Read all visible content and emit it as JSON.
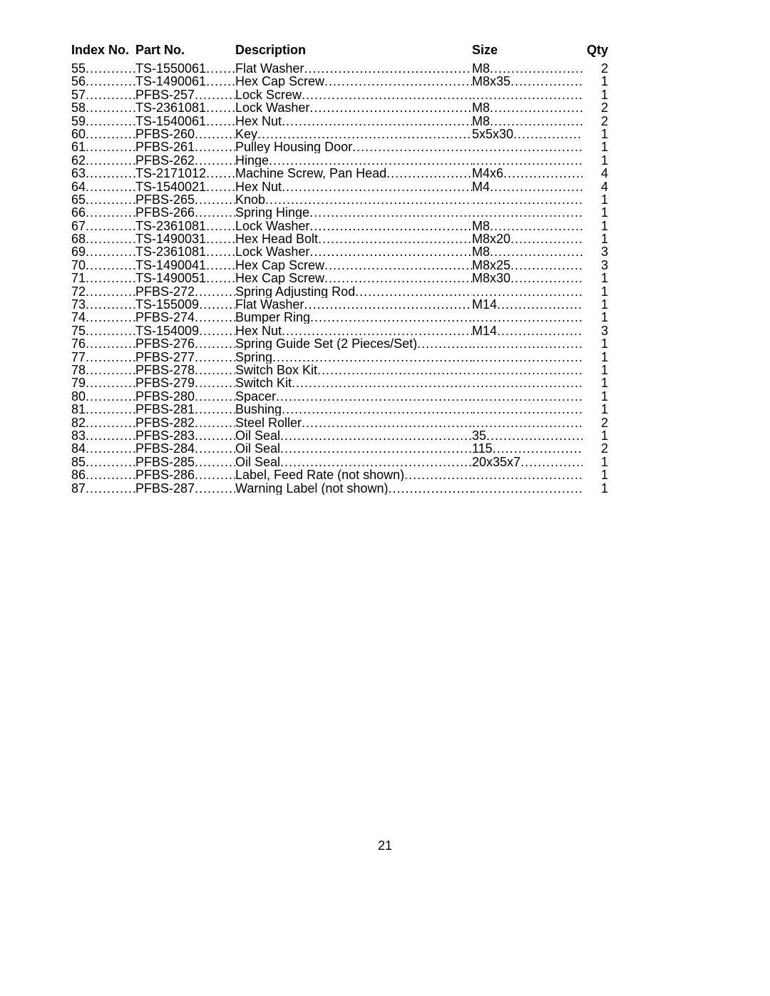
{
  "headers": {
    "index": "Index No.",
    "part": "Part No.",
    "description": "Description",
    "size": "Size",
    "qty": "Qty"
  },
  "page_number": "21",
  "dot_char": ".",
  "rows": [
    {
      "index": "55",
      "part": "TS-1550061",
      "description": "Flat Washer",
      "size": "M8",
      "qty": "2"
    },
    {
      "index": "56",
      "part": "TS-1490061",
      "description": "Hex Cap Screw",
      "size": "M8x35",
      "qty": "1"
    },
    {
      "index": "57",
      "part": "PFBS-257",
      "description": "Lock Screw",
      "size": "",
      "qty": "1"
    },
    {
      "index": "58",
      "part": "TS-2361081",
      "description": "Lock Washer",
      "size": "M8",
      "qty": "2"
    },
    {
      "index": "59",
      "part": "TS-1540061",
      "description": "Hex Nut",
      "size": "M8",
      "qty": "2"
    },
    {
      "index": "60",
      "part": "PFBS-260",
      "description": "Key",
      "size": "5x5x30",
      "qty": "1"
    },
    {
      "index": "61",
      "part": "PFBS-261",
      "description": "Pulley Housing Door",
      "size": "",
      "qty": "1"
    },
    {
      "index": "62",
      "part": "PFBS-262",
      "description": "Hinge",
      "size": "",
      "qty": "1"
    },
    {
      "index": "63",
      "part": "TS-2171012",
      "description": "Machine Screw, Pan Head",
      "size": "M4x6",
      "qty": "4"
    },
    {
      "index": "64",
      "part": "TS-1540021",
      "description": "Hex Nut",
      "size": "M4",
      "qty": "4"
    },
    {
      "index": "65",
      "part": "PFBS-265",
      "description": "Knob",
      "size": "",
      "qty": "1"
    },
    {
      "index": "66",
      "part": "PFBS-266",
      "description": "Spring Hinge",
      "size": "",
      "qty": "1"
    },
    {
      "index": "67",
      "part": "TS-2361081",
      "description": "Lock Washer",
      "size": "M8",
      "qty": "1"
    },
    {
      "index": "68",
      "part": "TS-1490031",
      "description": "Hex Head Bolt",
      "size": "M8x20",
      "qty": "1"
    },
    {
      "index": "69",
      "part": "TS-2361081",
      "description": "Lock Washer",
      "size": "M8",
      "qty": "3"
    },
    {
      "index": "70",
      "part": "TS-1490041",
      "description": "Hex Cap Screw",
      "size": "M8x25",
      "qty": "3"
    },
    {
      "index": "71",
      "part": "TS-1490051",
      "description": "Hex Cap Screw",
      "size": "M8x30",
      "qty": "1"
    },
    {
      "index": "72",
      "part": "PFBS-272",
      "description": "Spring Adjusting Rod",
      "size": "",
      "qty": "1"
    },
    {
      "index": "73",
      "part": "TS-155009",
      "description": "Flat Washer",
      "size": "M14",
      "qty": "1"
    },
    {
      "index": "74",
      "part": "PFBS-274",
      "description": "Bumper Ring",
      "size": "",
      "qty": "1"
    },
    {
      "index": "75",
      "part": "TS-154009",
      "description": "Hex Nut",
      "size": "M14",
      "qty": "3"
    },
    {
      "index": "76",
      "part": "PFBS-276",
      "description": "Spring Guide Set (2 Pieces/Set)",
      "size": "",
      "qty": "1"
    },
    {
      "index": "77",
      "part": "PFBS-277",
      "description": "Spring",
      "size": "",
      "qty": "1"
    },
    {
      "index": "78",
      "part": "PFBS-278",
      "description": "Switch Box Kit",
      "size": "",
      "qty": "1"
    },
    {
      "index": "79",
      "part": "PFBS-279",
      "description": "Switch Kit",
      "size": "",
      "qty": "1"
    },
    {
      "index": "80",
      "part": "PFBS-280",
      "description": "Spacer",
      "size": "",
      "qty": "1"
    },
    {
      "index": "81",
      "part": "PFBS-281",
      "description": "Bushing",
      "size": "",
      "qty": "1"
    },
    {
      "index": "82",
      "part": "PFBS-282",
      "description": "Steel Roller",
      "size": "",
      "qty": "2"
    },
    {
      "index": "83",
      "part": "PFBS-283",
      "description": "Oil Seal",
      "size": "35",
      "qty": "1"
    },
    {
      "index": "84",
      "part": "PFBS-284",
      "description": "Oil Seal",
      "size": "115",
      "qty": "2"
    },
    {
      "index": "85",
      "part": "PFBS-285",
      "description": "Oil Seal",
      "size": "20x35x7",
      "qty": "1"
    },
    {
      "index": "86",
      "part": "PFBS-286",
      "description": "Label, Feed Rate (not shown)",
      "size": "",
      "qty": "1"
    },
    {
      "index": "87",
      "part": "PFBS-287",
      "description": "Warning Label (not shown)",
      "size": "",
      "qty": "1"
    }
  ]
}
